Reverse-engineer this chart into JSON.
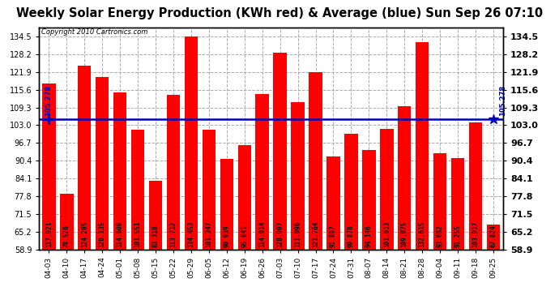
{
  "title": "Weekly Solar Energy Production (KWh red) & Average (blue) Sun Sep 26 07:10",
  "copyright": "Copyright 2010 Cartronics.com",
  "categories": [
    "04-03",
    "04-10",
    "04-17",
    "04-24",
    "05-01",
    "05-08",
    "05-15",
    "05-22",
    "05-29",
    "06-05",
    "06-12",
    "06-19",
    "06-26",
    "07-03",
    "07-10",
    "07-17",
    "07-24",
    "07-31",
    "08-07",
    "08-14",
    "08-21",
    "08-28",
    "09-04",
    "09-11",
    "09-18",
    "09-25"
  ],
  "values": [
    117.921,
    78.526,
    124.205,
    120.135,
    114.6,
    101.551,
    83.318,
    113.712,
    134.453,
    101.347,
    90.939,
    95.841,
    114.014,
    128.907,
    111.096,
    121.764,
    91.897,
    99.876,
    94.146,
    101.613,
    109.875,
    132.615,
    93.082,
    91.255,
    103.917,
    67.824
  ],
  "value_labels": [
    "117.921",
    "78.526",
    "124.205",
    "120.135",
    "114.600",
    "101.551",
    "83.318",
    "113.712",
    "134.453",
    "101.347",
    "90.939",
    "95.841",
    "114.014",
    "128.907",
    "111.096",
    "121.764",
    "91.897",
    "99.876",
    "94.146",
    "101.613",
    "109.875",
    "132.615",
    "93.082",
    "91.255",
    "103.917",
    "67.824"
  ],
  "average": 105.278,
  "bar_color": "#ff0000",
  "avg_line_color": "#0000bb",
  "background_color": "#ffffff",
  "plot_bg_color": "#ffffff",
  "grid_color": "#aaaaaa",
  "ylim_min": 58.9,
  "ylim_max": 137.8,
  "yticks": [
    58.9,
    65.2,
    71.5,
    77.8,
    84.1,
    90.4,
    96.7,
    103.0,
    109.3,
    115.6,
    121.9,
    128.2,
    134.5
  ],
  "title_fontsize": 10.5,
  "avg_label": "105.278",
  "left_ytick_fontsize": 7,
  "right_ytick_fontsize": 8,
  "xtick_fontsize": 6.5,
  "bar_label_fontsize": 5.5
}
